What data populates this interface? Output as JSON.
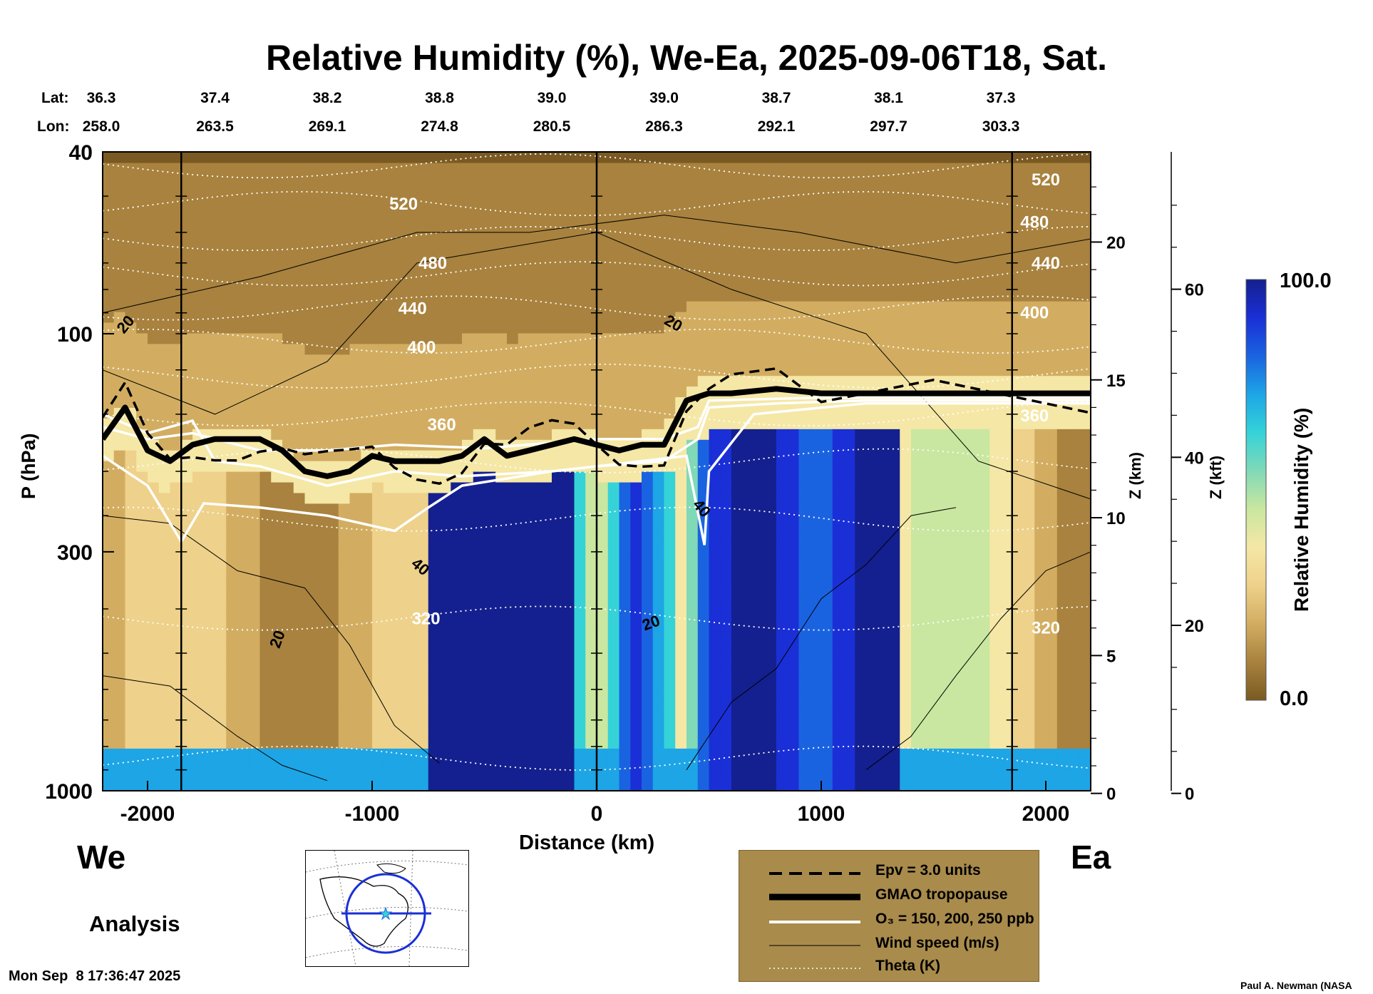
{
  "chart_data": {
    "type": "heatmap",
    "title": "Relative Humidity (%), We-Ea, 2025-09-06T18, Sat.",
    "xlabel": "Distance (km)",
    "ylabel": "P (hPa)",
    "xlim": [
      -2200,
      2200
    ],
    "ylim_pressure_hPa": [
      1000,
      40
    ],
    "y_scale": "log",
    "x_ticks": [
      "-2000",
      "-1000",
      "0",
      "1000",
      "2000"
    ],
    "x_tick_values": [
      -2000,
      -1000,
      0,
      1000,
      2000
    ],
    "y_ticks": [
      "40",
      "100",
      "300",
      "1000"
    ],
    "y_tick_values": [
      40,
      100,
      300,
      1000
    ],
    "z_km_label": "Z (km)",
    "z_km_ticks": [
      "0",
      "5",
      "10",
      "15",
      "20"
    ],
    "z_km_values": [
      0,
      5,
      10,
      15,
      20
    ],
    "z_kft_label": "Z (kft)",
    "z_kft_ticks": [
      "0",
      "20",
      "40",
      "60"
    ],
    "z_kft_values": [
      0,
      20,
      40,
      60
    ],
    "left_end_label": "We",
    "right_end_label": "Ea",
    "lat_label": "Lat:",
    "lon_label": "Lon:",
    "lat_values": [
      "36.3",
      "37.4",
      "38.2",
      "38.8",
      "39.0",
      "39.0",
      "38.7",
      "38.1",
      "37.3"
    ],
    "lon_values": [
      "258.0",
      "263.5",
      "269.1",
      "274.8",
      "280.5",
      "286.3",
      "292.1",
      "297.7",
      "303.3"
    ],
    "coord_positions_km": [
      -2200,
      -1700,
      -1200,
      -700,
      -200,
      300,
      800,
      1300,
      1800
    ],
    "colorbar": {
      "label": "Relative Humidity (%)",
      "min_label": "0.0",
      "max_label": "100.0",
      "min": 0.0,
      "max": 100.0,
      "colors": [
        "#7a5a22",
        "#a8823e",
        "#d2ad61",
        "#eed18a",
        "#f5e7a6",
        "#c9e7a0",
        "#80d9b7",
        "#35d3d8",
        "#1da5e6",
        "#1a63e0",
        "#1a2fd6",
        "#14208f"
      ]
    },
    "theta_labels": [
      "520",
      "480",
      "440",
      "400",
      "360",
      "320",
      "520",
      "480",
      "440",
      "400",
      "360",
      "320"
    ],
    "wind_labels": [
      "20",
      "20",
      "40",
      "20",
      "20",
      "40"
    ],
    "tropopause_hPa": {
      "x": [
        -2200,
        -2100,
        -2000,
        -1900,
        -1800,
        -1700,
        -1600,
        -1500,
        -1400,
        -1300,
        -1200,
        -1100,
        -1000,
        -900,
        -800,
        -700,
        -600,
        -500,
        -400,
        -300,
        -200,
        -100,
        0,
        100,
        200,
        300,
        400,
        500,
        600,
        800,
        1000,
        1500,
        2200
      ],
      "p": [
        170,
        145,
        180,
        190,
        175,
        170,
        170,
        170,
        180,
        200,
        205,
        200,
        185,
        190,
        190,
        190,
        185,
        170,
        185,
        180,
        175,
        170,
        175,
        180,
        175,
        175,
        140,
        135,
        135,
        132,
        135,
        135,
        135
      ]
    },
    "legend": [
      {
        "label": "Epv = 3.0 units",
        "style": "dashed"
      },
      {
        "label": "GMAO tropopause",
        "style": "thick"
      },
      {
        "label": "O₃ = 150, 200, 250 ppb",
        "style": "white"
      },
      {
        "label": "Wind speed (m/s)",
        "style": "thin"
      },
      {
        "label": "Theta (K)",
        "style": "dotted"
      }
    ],
    "grid": false
  },
  "footer": {
    "analysis": "Analysis",
    "timestamp": "Mon Sep  8 17:36:47 2025",
    "credit": "Paul A. Newman (NASA"
  },
  "colors": {
    "legend_bg": "#a98b4c",
    "dry": "#a8823e",
    "moist": "#14208f"
  }
}
